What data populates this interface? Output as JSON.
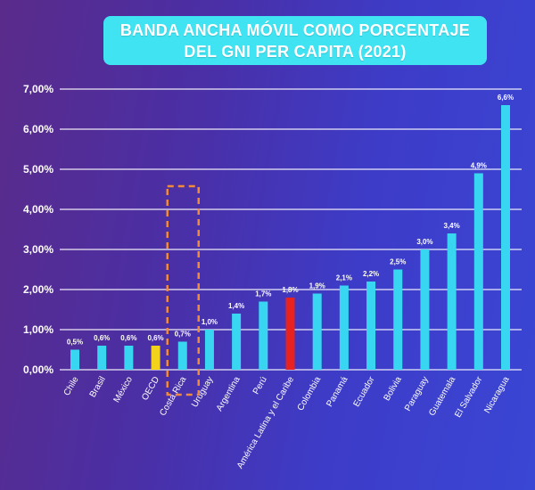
{
  "chart_data": {
    "type": "bar",
    "title": "BANDA ANCHA MÓVIL COMO PORCENTAJE DEL GNI PER CAPITA (2021)",
    "title_lines": [
      "BANDA ANCHA MÓVIL COMO PORCENTAJE",
      "DEL GNI PER CAPITA (2021)"
    ],
    "xlabel": "",
    "ylabel": "",
    "ylim": [
      0,
      7
    ],
    "yticks": [
      0,
      1,
      2,
      3,
      4,
      5,
      6,
      7
    ],
    "ytick_labels": [
      "0,00%",
      "1,00%",
      "2,00%",
      "3,00%",
      "4,00%",
      "5,00%",
      "6,00%",
      "7,00%"
    ],
    "grid": true,
    "legend": "none",
    "categories": [
      "Chile",
      "Brasil",
      "México",
      "OECD",
      "Costa Rica",
      "Uruguay",
      "Argentina",
      "Perú",
      "América Latina y el Caribe",
      "Colombia",
      "Panamá",
      "Ecuador",
      "Bolivia",
      "Paraguay",
      "Guatemala",
      "El Salvador",
      "Nicaragua"
    ],
    "values": [
      0.5,
      0.6,
      0.6,
      0.6,
      0.7,
      1.0,
      1.4,
      1.7,
      1.8,
      1.9,
      2.1,
      2.2,
      2.5,
      3.0,
      3.4,
      4.9,
      6.6
    ],
    "value_labels": [
      "0,5%",
      "0,6%",
      "0,6%",
      "0,6%",
      "0,7%",
      "1,0%",
      "1,4%",
      "1,7%",
      "1,8%",
      "1,9%",
      "2,1%",
      "2,2%",
      "2,5%",
      "3,0%",
      "3,4%",
      "4,9%",
      "6,6%"
    ],
    "bar_colors": [
      "#39d6f2",
      "#39d6f2",
      "#39d6f2",
      "#f2d21b",
      "#39d6f2",
      "#39d6f2",
      "#39d6f2",
      "#39d6f2",
      "#e8221f",
      "#39d6f2",
      "#39d6f2",
      "#39d6f2",
      "#39d6f2",
      "#39d6f2",
      "#39d6f2",
      "#39d6f2",
      "#39d6f2"
    ],
    "highlight": {
      "category": "Costa Rica",
      "style": "dashed-box",
      "color": "#f08a3c"
    }
  },
  "colors": {
    "bar_default": "#39d6f2",
    "bar_oecd": "#f2d21b",
    "bar_region": "#e8221f",
    "title_box": "#3fe3f2",
    "text": "#ffffff",
    "grid": "#ffffff"
  }
}
